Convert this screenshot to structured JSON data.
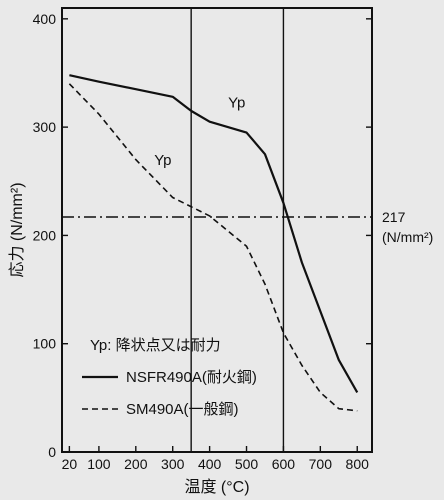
{
  "chart_data": {
    "type": "line",
    "xlabel": "温度 (°C)",
    "ylabel": "応力 (N/mm²)",
    "x_ticks": [
      20,
      100,
      200,
      300,
      400,
      500,
      600,
      700,
      800
    ],
    "y_ticks": [
      0,
      100,
      200,
      300,
      400
    ],
    "xlim": [
      0,
      840
    ],
    "ylim": [
      0,
      410
    ],
    "grid": false,
    "series": [
      {
        "name": "NSFR490A(耐火鋼)",
        "style": "solid",
        "x": [
          20,
          100,
          200,
          300,
          350,
          400,
          500,
          550,
          600,
          650,
          700,
          750,
          800
        ],
        "y": [
          348,
          342,
          335,
          328,
          315,
          305,
          295,
          275,
          230,
          175,
          130,
          85,
          55
        ]
      },
      {
        "name": "SM490A(一般鋼)",
        "style": "dashed",
        "x": [
          20,
          100,
          200,
          300,
          400,
          500,
          550,
          600,
          650,
          700,
          750,
          800
        ],
        "y": [
          340,
          312,
          270,
          235,
          218,
          190,
          155,
          110,
          80,
          55,
          40,
          38
        ]
      }
    ],
    "reference_lines": {
      "horizontal": {
        "y": 217,
        "label_value": "217",
        "label_unit": "(N/mm²)"
      },
      "vertical": [
        350,
        600
      ]
    },
    "annotations": [
      {
        "text": "Yp",
        "x": 450,
        "y": 318
      },
      {
        "text": "Yp",
        "x": 250,
        "y": 265
      }
    ],
    "legend": {
      "header": "Yp: 降状点又は耐力",
      "position": "bottom-left",
      "items": [
        "NSFR490A(耐火鋼)",
        "SM490A(一般鋼)"
      ]
    },
    "colors": {
      "line": "#111111",
      "background": "#e9e9e9"
    }
  }
}
